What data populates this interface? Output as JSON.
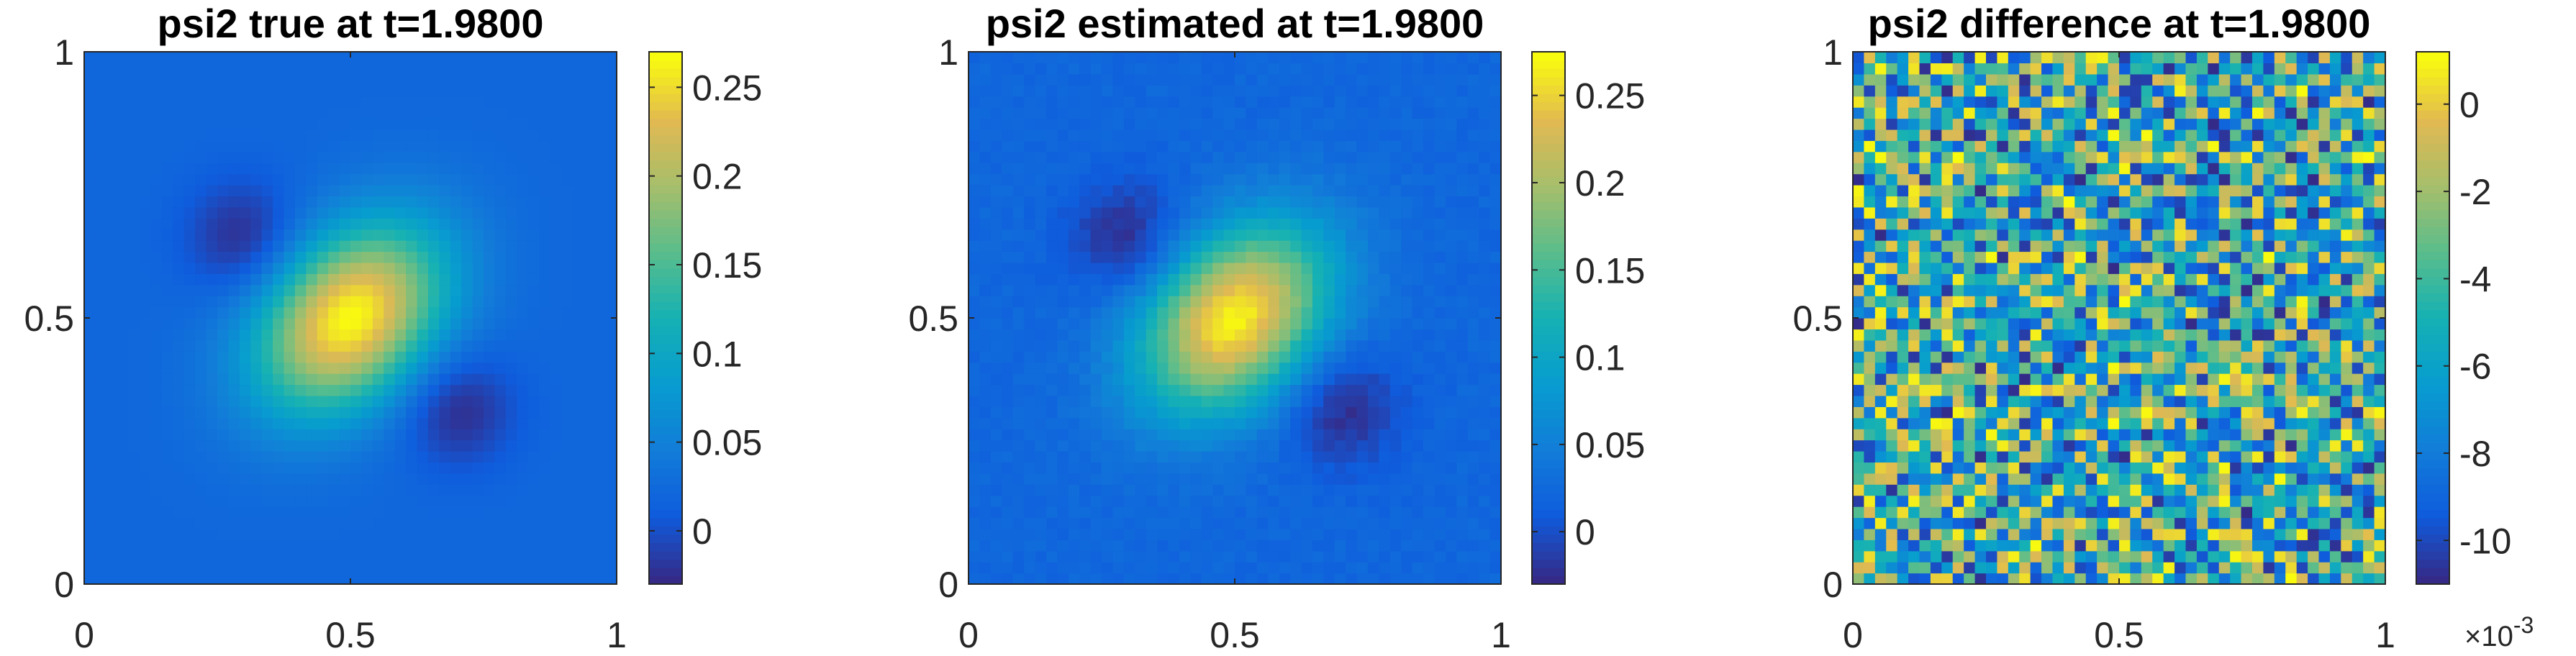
{
  "chart_data": [
    {
      "type": "heatmap",
      "title": "psi2 true at t=1.9800",
      "xlim": [
        0,
        1
      ],
      "ylim": [
        0,
        1
      ],
      "xticks": [
        "0",
        "0.5",
        "1"
      ],
      "yticks": [
        "0",
        "0.5",
        "1"
      ],
      "colorbar": {
        "colormap": "parula",
        "min": -0.03,
        "max": 0.27,
        "ticks": [
          -0.0,
          0.05,
          0.1,
          0.15,
          0.2,
          0.25
        ],
        "tick_labels": [
          "0",
          "0.05",
          "0.1",
          "0.15",
          "0.2",
          "0.25"
        ]
      },
      "field": {
        "grid": 48,
        "background": 0.02,
        "noise": 0,
        "features": [
          {
            "name": "central peak",
            "x": 0.5,
            "y": 0.5,
            "amplitude": 0.25
          },
          {
            "name": "upper-left trough",
            "x": 0.3,
            "y": 0.65,
            "amplitude": -0.05
          },
          {
            "name": "lower-right trough",
            "x": 0.7,
            "y": 0.33,
            "amplitude": -0.05
          }
        ]
      }
    },
    {
      "type": "heatmap",
      "title": "psi2 estimated at t=1.9800",
      "xlim": [
        0,
        1
      ],
      "ylim": [
        0,
        1
      ],
      "xticks": [
        "0",
        "0.5",
        "1"
      ],
      "yticks": [
        "0",
        "0.5",
        "1"
      ],
      "colorbar": {
        "colormap": "parula",
        "min": -0.03,
        "max": 0.275,
        "ticks": [
          0,
          0.05,
          0.1,
          0.15,
          0.2,
          0.25
        ],
        "tick_labels": [
          "0",
          "0.05",
          "0.1",
          "0.15",
          "0.2",
          "0.25"
        ]
      },
      "field": {
        "grid": 48,
        "background": 0.02,
        "noise": 0.006,
        "features": [
          {
            "name": "central peak",
            "x": 0.5,
            "y": 0.5,
            "amplitude": 0.25
          },
          {
            "name": "upper-left trough",
            "x": 0.3,
            "y": 0.65,
            "amplitude": -0.05
          },
          {
            "name": "lower-right trough",
            "x": 0.7,
            "y": 0.33,
            "amplitude": -0.05
          }
        ]
      }
    },
    {
      "type": "heatmap",
      "title": "psi2 difference at t=1.9800",
      "xlim": [
        0,
        1
      ],
      "ylim": [
        0,
        1
      ],
      "xticks": [
        "0",
        "0.5",
        "1"
      ],
      "yticks": [
        "0",
        "0.5",
        "1"
      ],
      "colorbar": {
        "colormap": "parula",
        "min": -0.011,
        "max": 0.0012,
        "ticks": [
          -0.01,
          -0.008,
          -0.006,
          -0.004,
          -0.002,
          0
        ],
        "tick_labels": [
          "-10",
          "-8",
          "-6",
          "-4",
          "-2",
          "0"
        ],
        "exponent_base": "×10",
        "exponent": "-3"
      },
      "field": {
        "grid": 48,
        "kind": "uniform noise",
        "range": [
          -0.011,
          0.0012
        ]
      }
    }
  ]
}
